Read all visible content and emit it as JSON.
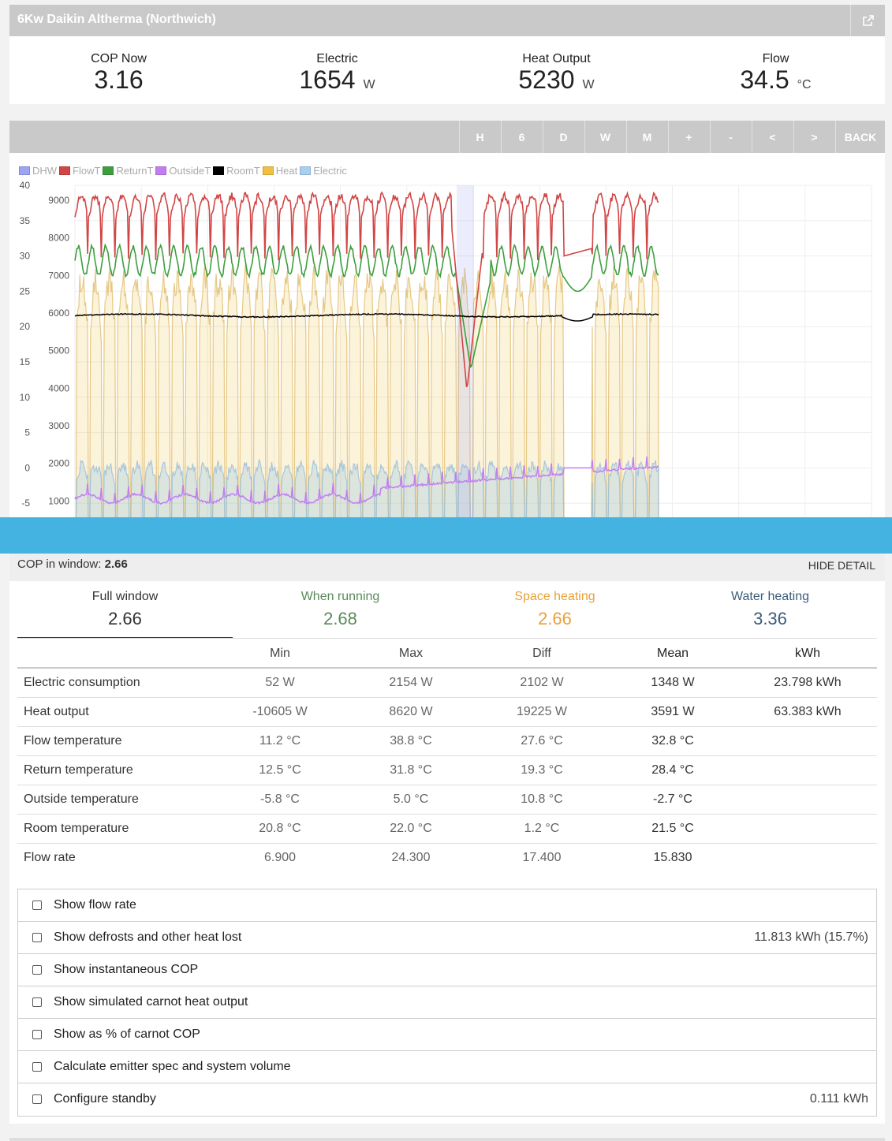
{
  "header": {
    "title": "6Kw Daikin Altherma (Northwich)",
    "external_icon": "external-link-icon"
  },
  "stats": [
    {
      "label": "COP Now",
      "value": "3.16",
      "unit": ""
    },
    {
      "label": "Electric",
      "value": "1654",
      "unit": "W"
    },
    {
      "label": "Heat Output",
      "value": "5230",
      "unit": "W"
    },
    {
      "label": "Flow",
      "value": "34.5",
      "unit": "°C"
    }
  ],
  "toolbar": [
    "H",
    "6",
    "D",
    "W",
    "M",
    "+",
    "-",
    "<",
    ">",
    "BACK"
  ],
  "legend": [
    {
      "name": "DHW",
      "color": "#9ba4f5"
    },
    {
      "name": "FlowT",
      "color": "#d24545"
    },
    {
      "name": "ReturnT",
      "color": "#3e9e3e"
    },
    {
      "name": "OutsideT",
      "color": "#c27ef0"
    },
    {
      "name": "RoomT",
      "color": "#000000"
    },
    {
      "name": "Heat",
      "color": "#f0c040"
    },
    {
      "name": "Electric",
      "color": "#a8d0f0"
    }
  ],
  "chart_data": {
    "type": "line",
    "y_left": {
      "ticks": [
        40,
        35,
        30,
        25,
        20,
        15,
        10,
        5,
        0,
        -5
      ]
    },
    "y_right": {
      "ticks": [
        9000,
        8000,
        7000,
        6000,
        5000,
        4000,
        3000,
        2000,
        1000
      ]
    },
    "series": [
      {
        "name": "FlowT",
        "approx_range": [
          11.2,
          38.8
        ]
      },
      {
        "name": "ReturnT",
        "approx_range": [
          12.5,
          31.8
        ]
      },
      {
        "name": "RoomT",
        "approx_range": [
          20.8,
          22.0
        ]
      },
      {
        "name": "OutsideT",
        "approx_range": [
          -5.8,
          5.0
        ]
      },
      {
        "name": "Heat",
        "approx_range": [
          0,
          8620
        ]
      },
      {
        "name": "Electric",
        "approx_range": [
          52,
          2154
        ]
      }
    ]
  },
  "cop_window": {
    "label": "COP in window:",
    "value": "2.66",
    "hide": "HIDE DETAIL"
  },
  "tabs": [
    {
      "label": "Full window",
      "value": "2.66",
      "color": "#333333"
    },
    {
      "label": "When running",
      "value": "2.68",
      "color": "#5a8a5a"
    },
    {
      "label": "Space heating",
      "value": "2.66",
      "color": "#e8a13a"
    },
    {
      "label": "Water heating",
      "value": "3.36",
      "color": "#3b5c7a"
    }
  ],
  "table": {
    "headers": [
      "",
      "Min",
      "Max",
      "Diff",
      "Mean",
      "kWh"
    ],
    "rows": [
      [
        "Electric consumption",
        "52 W",
        "2154 W",
        "2102 W",
        "1348 W",
        "23.798 kWh"
      ],
      [
        "Heat output",
        "-10605 W",
        "8620 W",
        "19225 W",
        "3591 W",
        "63.383 kWh"
      ],
      [
        "Flow temperature",
        "11.2 °C",
        "38.8 °C",
        "27.6 °C",
        "32.8 °C",
        ""
      ],
      [
        "Return temperature",
        "12.5 °C",
        "31.8 °C",
        "19.3 °C",
        "28.4 °C",
        ""
      ],
      [
        "Outside temperature",
        "-5.8 °C",
        "5.0 °C",
        "10.8 °C",
        "-2.7 °C",
        ""
      ],
      [
        "Room temperature",
        "20.8 °C",
        "22.0 °C",
        "1.2 °C",
        "21.5 °C",
        ""
      ],
      [
        "Flow rate",
        "6.900",
        "24.300",
        "17.400",
        "15.830",
        ""
      ]
    ]
  },
  "options": [
    {
      "label": "Show flow rate",
      "right": ""
    },
    {
      "label": "Show defrosts and other heat lost",
      "right": "11.813 kWh (15.7%)"
    },
    {
      "label": "Show instantaneous COP",
      "right": ""
    },
    {
      "label": "Show simulated carnot heat output",
      "right": ""
    },
    {
      "label": "Show as % of carnot COP",
      "right": ""
    },
    {
      "label": "Calculate emitter spec and system volume",
      "right": ""
    },
    {
      "label": "Configure standby",
      "right": "0.111 kWh"
    }
  ]
}
